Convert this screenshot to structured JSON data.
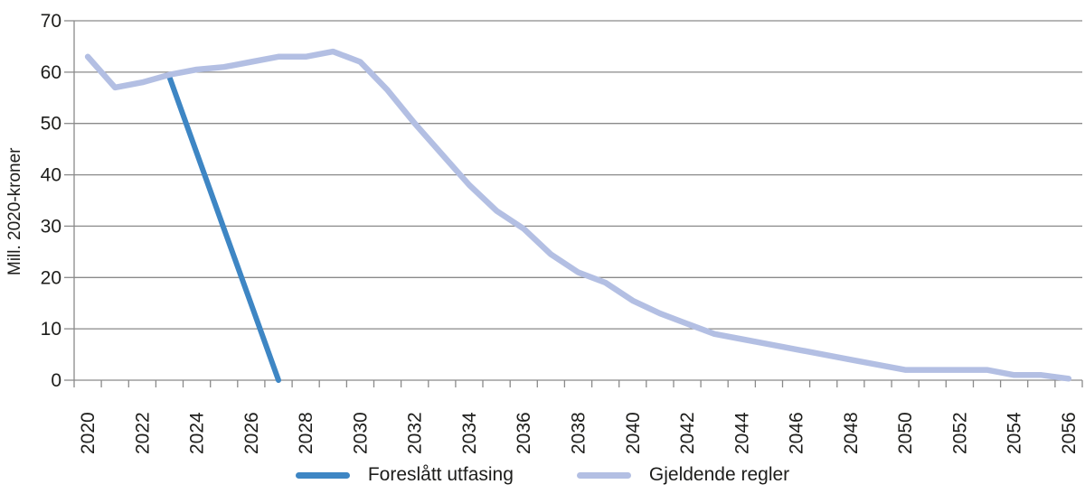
{
  "chart_data": {
    "type": "line",
    "title": "",
    "xlabel": "",
    "ylabel": "Mill. 2020-kroner",
    "ylim": [
      0,
      70
    ],
    "yticks": [
      0,
      10,
      20,
      30,
      40,
      50,
      60,
      70
    ],
    "x_min": 2020,
    "x_max": 2056,
    "xtick_label_step": 2,
    "xtick_labels": [
      "2020",
      "2022",
      "2024",
      "2026",
      "2028",
      "2030",
      "2032",
      "2034",
      "2036",
      "2038",
      "2040",
      "2042",
      "2044",
      "2046",
      "2048",
      "2050",
      "2052",
      "2054",
      "2056"
    ],
    "grid": "horizontal",
    "legend_position": "bottom-center",
    "axis_color": "#8a8a8a",
    "series": [
      {
        "name": "Foreslått utfasing",
        "color": "#3e86c4",
        "line_width": 6,
        "x": [
          2023,
          2024,
          2025,
          2026,
          2027
        ],
        "values": [
          59,
          44.25,
          29.5,
          14.75,
          0
        ]
      },
      {
        "name": "Gjeldende regler",
        "color": "#b3bfe3",
        "line_width": 6.5,
        "x": [
          2020,
          2021,
          2022,
          2023,
          2024,
          2025,
          2026,
          2027,
          2028,
          2029,
          2030,
          2031,
          2032,
          2033,
          2034,
          2035,
          2036,
          2037,
          2038,
          2039,
          2040,
          2041,
          2042,
          2043,
          2044,
          2045,
          2046,
          2047,
          2048,
          2049,
          2050,
          2051,
          2052,
          2053,
          2054,
          2055,
          2056
        ],
        "values": [
          63,
          57,
          58,
          59.5,
          60.5,
          61,
          62,
          63,
          63,
          64,
          62,
          56.5,
          50,
          44,
          38,
          33,
          29.5,
          24.5,
          21,
          19,
          15.5,
          13,
          11,
          9,
          8,
          7,
          6,
          5,
          4,
          3,
          2,
          2,
          2,
          2,
          1,
          1,
          0.3
        ]
      }
    ]
  },
  "legend": {
    "items": [
      {
        "label": "Foreslått utfasing"
      },
      {
        "label": "Gjeldende regler"
      }
    ]
  }
}
